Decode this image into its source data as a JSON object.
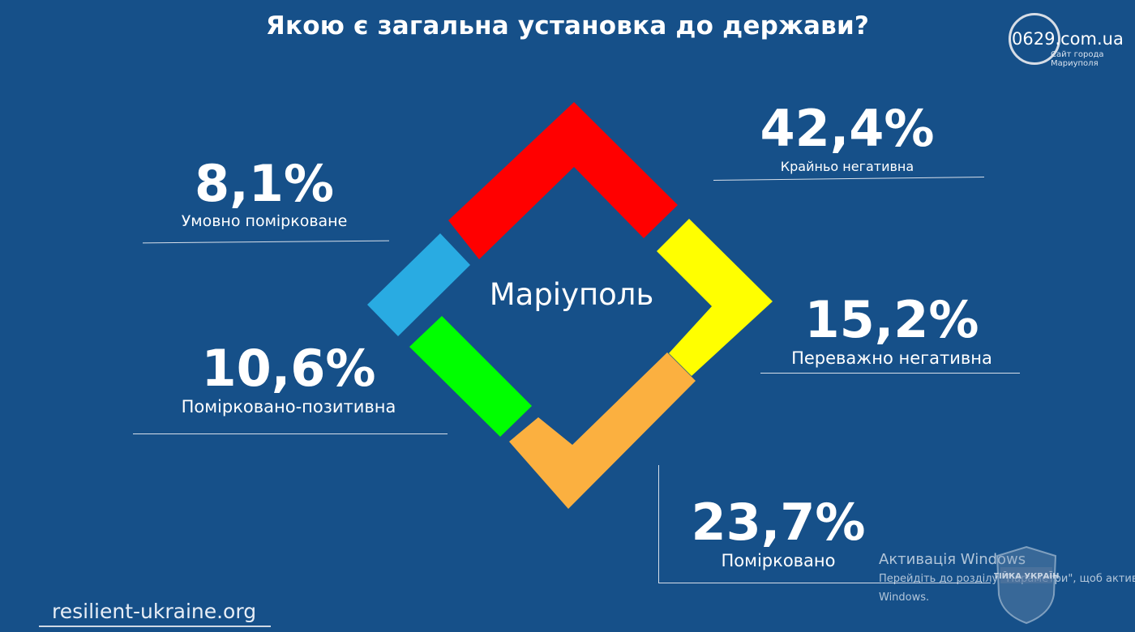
{
  "title": "Якою є загальна установка до держави?",
  "logo": {
    "main": "0629.com.ua",
    "sub_line1": "Сайт города",
    "sub_line2": "Мариуполя"
  },
  "chart_data": {
    "type": "pie",
    "center_label": "Маріуполь",
    "segments": [
      {
        "label": "Крайньо негативна",
        "display": "42,4%",
        "value": 42.4,
        "color": "#ff0000"
      },
      {
        "label": "Переважно негативна",
        "display": "15,2%",
        "value": 15.2,
        "color": "#ffff00"
      },
      {
        "label": "Помірковано",
        "display": "23,7%",
        "value": 23.7,
        "color": "#fbb040"
      },
      {
        "label": "Помірковано-позитивна",
        "display": "10,6%",
        "value": 10.6,
        "color": "#00ff00"
      },
      {
        "label": "Умовно помірковане",
        "display": "8,1%",
        "value": 8.1,
        "color": "#29abe2"
      }
    ]
  },
  "labels": {
    "top_right_pct": "42,4%",
    "top_right_cap": "Крайньо негативна",
    "right_pct": "15,2%",
    "right_cap": "Переважно негативна",
    "bottom_right_pct": "23,7%",
    "bottom_right_cap": "Помірковано",
    "top_left_pct": "8,1%",
    "top_left_cap": "Умовно помірковане",
    "left_pct": "10,6%",
    "left_cap": "Помірковано-позитивна"
  },
  "footer": "resilient-ukraine.org",
  "watermark": {
    "line1": "Активація Windows",
    "line2": "Перейдіть до розділу \"Параметри\", щоб активувати",
    "line3": "Windows."
  },
  "badge_text": "СТІЙКА УКРАЇНА"
}
